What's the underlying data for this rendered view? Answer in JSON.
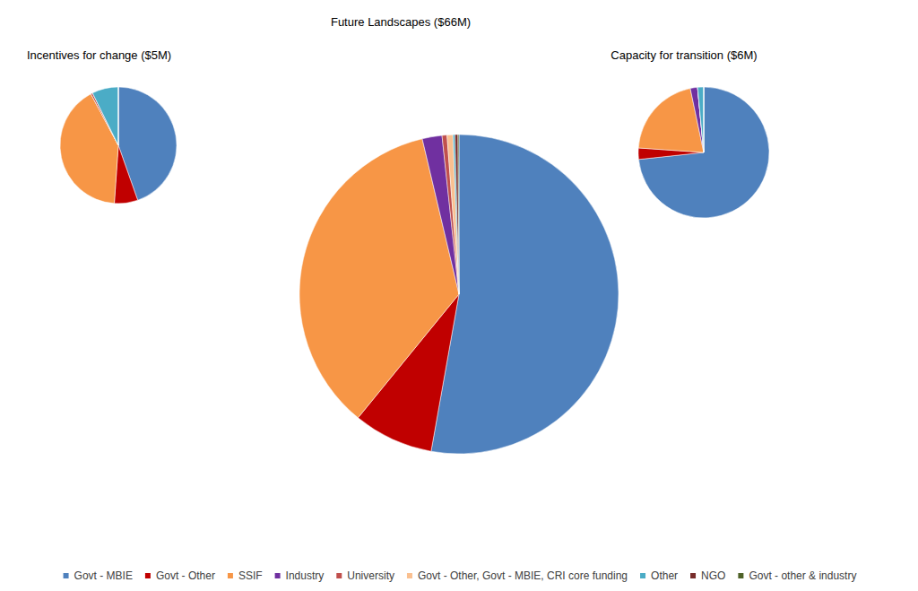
{
  "chart_data": [
    {
      "type": "pie",
      "title": "Incentives for change ($5M)",
      "categories": [
        "Govt - MBIE",
        "Govt - Other",
        "SSIF",
        "Industry",
        "University",
        "Govt - Other, Govt - MBIE, CRI core funding",
        "Other",
        "NGO",
        "Govt - other & industry"
      ],
      "values": [
        44.6,
        6.5,
        41.1,
        0,
        0.5,
        0,
        7.3,
        0,
        0
      ],
      "colors": [
        "#4f81bd",
        "#c00000",
        "#f79646",
        "#7030a0",
        "#c0504d",
        "#fac090",
        "#4bacc6",
        "#772c2a",
        "#4f6228"
      ]
    },
    {
      "type": "pie",
      "title": "Future Landscapes ($66M)",
      "categories": [
        "Govt - MBIE",
        "Govt - Other",
        "SSIF",
        "Industry",
        "University",
        "Govt - Other, Govt - MBIE, CRI core funding",
        "Other",
        "NGO",
        "Govt - other & industry"
      ],
      "values": [
        52.8,
        8.1,
        35.4,
        2.0,
        0.5,
        0.6,
        0.2,
        0.3,
        0.1
      ],
      "colors": [
        "#4f81bd",
        "#c00000",
        "#f79646",
        "#7030a0",
        "#c0504d",
        "#fac090",
        "#4bacc6",
        "#772c2a",
        "#4f6228"
      ],
      "legend": "bottom"
    },
    {
      "type": "pie",
      "title": "Capacity for transition ($6M)",
      "categories": [
        "Govt - MBIE",
        "Govt - Other",
        "SSIF",
        "Industry",
        "University",
        "Govt - Other, Govt - MBIE, CRI core funding",
        "Other",
        "NGO",
        "Govt - other & industry"
      ],
      "values": [
        73.3,
        2.8,
        20.6,
        1.8,
        0,
        0,
        1.5,
        0,
        0
      ],
      "colors": [
        "#4f81bd",
        "#c00000",
        "#f79646",
        "#7030a0",
        "#c0504d",
        "#fac090",
        "#4bacc6",
        "#772c2a",
        "#4f6228"
      ]
    }
  ]
}
